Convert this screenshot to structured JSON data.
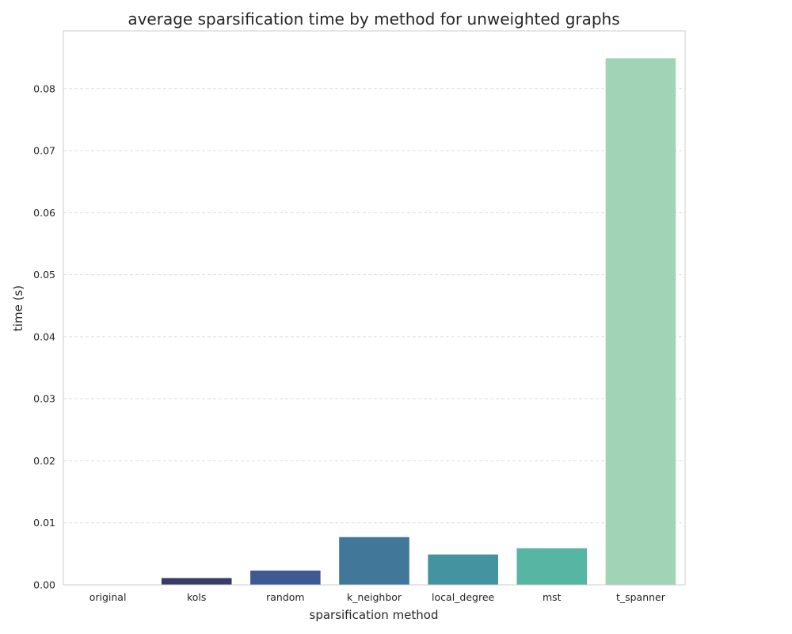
{
  "chart_data": {
    "type": "bar",
    "title": "average sparsification time by method for unweighted graphs",
    "xlabel": "sparsification method",
    "ylabel": "time (s)",
    "categories": [
      "original",
      "kols",
      "random",
      "k_neighbor",
      "local_degree",
      "mst",
      "t_spanner"
    ],
    "values": [
      0.0,
      0.0011,
      0.0023,
      0.0077,
      0.0049,
      0.0059,
      0.0849
    ],
    "colors": [
      "#f0f0f0",
      "#3b3b6b",
      "#3e5a93",
      "#41789a",
      "#4393a0",
      "#57b5a3",
      "#a1d4b6"
    ],
    "ylim": [
      0,
      0.0893
    ],
    "yticks": [
      "0.00",
      "0.01",
      "0.02",
      "0.03",
      "0.04",
      "0.05",
      "0.06",
      "0.07",
      "0.08"
    ],
    "grid": "y-dashed",
    "legend": "none"
  }
}
